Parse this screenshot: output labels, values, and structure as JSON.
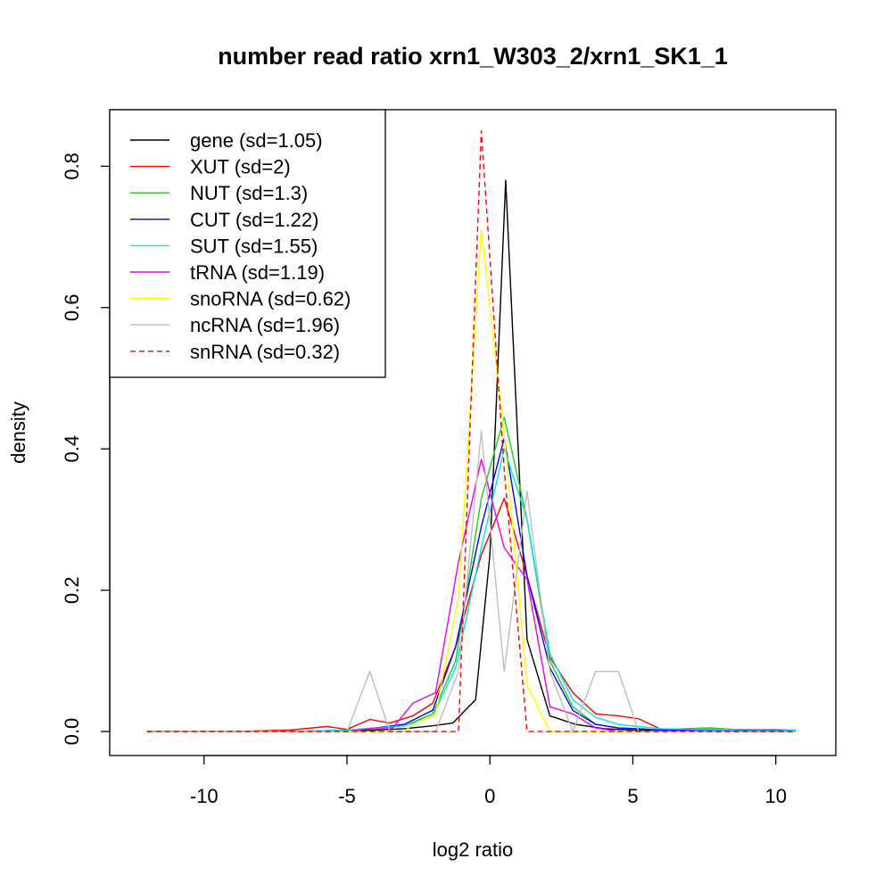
{
  "chart_data": {
    "type": "line",
    "title": "number read ratio xrn1_W303_2/xrn1_SK1_1",
    "xlabel": "log2 ratio",
    "ylabel": "density",
    "xlim": [
      -13.3,
      12.1
    ],
    "ylim": [
      -0.034,
      0.88
    ],
    "xticks": [
      -10,
      -5,
      0,
      5,
      10
    ],
    "yticks": [
      0.0,
      0.2,
      0.4,
      0.6,
      0.8
    ],
    "xtick_labels": [
      "-10",
      "-5",
      "0",
      "5",
      "10"
    ],
    "ytick_labels": [
      "0.0",
      "0.2",
      "0.4",
      "0.6",
      "0.8"
    ],
    "grid": false,
    "legend_position": "top-left",
    "series": [
      {
        "name": "gene (sd=1.05)",
        "color": "#000000",
        "dash": "solid",
        "x": [
          -12,
          -9,
          -6,
          -5,
          -4,
          -3,
          -2,
          -1.3,
          -0.5,
          0,
          0.55,
          1.3,
          2.1,
          3,
          4,
          5,
          6,
          8,
          10,
          10.7
        ],
        "y": [
          0,
          0,
          0,
          0.001,
          0.002,
          0.004,
          0.008,
          0.012,
          0.045,
          0.25,
          0.78,
          0.13,
          0.022,
          0.01,
          0.004,
          0.002,
          0.001,
          0,
          0,
          0
        ]
      },
      {
        "name": "XUT (sd=2)",
        "color": "#ff0000",
        "dash": "solid",
        "x": [
          -12,
          -9,
          -7,
          -5.7,
          -5,
          -4.2,
          -3.5,
          -2.7,
          -2,
          -1.2,
          -0.3,
          0.5,
          1.3,
          2.1,
          2.9,
          3.7,
          4.5,
          5.2,
          6,
          7.7,
          9.3,
          10.7
        ],
        "y": [
          0,
          0,
          0.002,
          0.007,
          0.003,
          0.017,
          0.012,
          0.022,
          0.04,
          0.12,
          0.25,
          0.33,
          0.22,
          0.105,
          0.055,
          0.025,
          0.022,
          0.018,
          0.003,
          0.005,
          0.001,
          0.002
        ]
      },
      {
        "name": "NUT (sd=1.3)",
        "color": "#22cc22",
        "dash": "solid",
        "x": [
          -12,
          -9,
          -7,
          -5,
          -4,
          -3,
          -2,
          -1.2,
          -0.3,
          0.5,
          1.3,
          2.1,
          2.9,
          3.7,
          4.5,
          6,
          7.7,
          9.3,
          10.7
        ],
        "y": [
          0,
          0,
          0,
          0.002,
          0.004,
          0.008,
          0.025,
          0.1,
          0.33,
          0.445,
          0.3,
          0.1,
          0.035,
          0.01,
          0.005,
          0.002,
          0.005,
          0.001,
          0.001
        ]
      },
      {
        "name": "CUT (sd=1.22)",
        "color": "#0000ff",
        "dash": "solid",
        "x": [
          -12,
          -9,
          -7,
          -5,
          -4,
          -3,
          -2,
          -1.2,
          -0.3,
          0.5,
          1.3,
          2.1,
          2.9,
          3.7,
          4.5,
          5.2,
          6,
          8,
          10.7
        ],
        "y": [
          0,
          0,
          0,
          0.002,
          0.005,
          0.01,
          0.03,
          0.12,
          0.29,
          0.415,
          0.22,
          0.09,
          0.03,
          0.01,
          0.005,
          0.004,
          0.002,
          0.001,
          0.001
        ]
      },
      {
        "name": "SUT (sd=1.55)",
        "color": "#00e5ee",
        "dash": "solid",
        "x": [
          -12,
          -9,
          -7,
          -5,
          -4,
          -3,
          -2,
          -1.2,
          -0.3,
          0.5,
          1.3,
          2.1,
          2.9,
          3.7,
          4.5,
          5.2,
          6,
          8,
          10,
          10.7
        ],
        "y": [
          0,
          0,
          0,
          0.002,
          0.005,
          0.008,
          0.022,
          0.09,
          0.26,
          0.4,
          0.3,
          0.11,
          0.045,
          0.02,
          0.01,
          0.007,
          0.004,
          0.003,
          0.003,
          0.002
        ]
      },
      {
        "name": "tRNA (sd=1.19)",
        "color": "#ee00ee",
        "dash": "solid",
        "x": [
          -12,
          -9,
          -7,
          -5,
          -4,
          -3.4,
          -2.7,
          -1.9,
          -1.1,
          -0.3,
          0.5,
          1.3,
          2.1,
          2.9,
          3.7,
          4.5,
          6,
          10.7
        ],
        "y": [
          0,
          0,
          0,
          0,
          0.005,
          0.005,
          0.04,
          0.055,
          0.24,
          0.385,
          0.26,
          0.215,
          0.035,
          0.025,
          0.005,
          0,
          0,
          0
        ]
      },
      {
        "name": "snoRNA (sd=0.62)",
        "color": "#ffff00",
        "dash": "solid",
        "x": [
          -12,
          -3,
          -2.7,
          -1.9,
          -1.1,
          -0.3,
          0.5,
          1.3,
          2.1,
          10.7
        ],
        "y": [
          0,
          0,
          0.01,
          0.025,
          0.19,
          0.71,
          0.42,
          0.065,
          0,
          0
        ]
      },
      {
        "name": "ncRNA (sd=1.96)",
        "color": "#bebebe",
        "dash": "solid",
        "x": [
          -12,
          -5,
          -4.2,
          -3.5,
          -2.7,
          -1.9,
          -1.1,
          -0.3,
          0.5,
          1.3,
          2.1,
          2.9,
          3.7,
          4.5,
          5.2,
          10.7
        ],
        "y": [
          0,
          0,
          0.085,
          0,
          0,
          0,
          0.085,
          0.425,
          0.085,
          0.34,
          0.085,
          0,
          0.085,
          0.085,
          0,
          0
        ]
      },
      {
        "name": "snRNA (sd=0.32)",
        "color": "#ff0000",
        "dash": "dashed",
        "x": [
          -12,
          -1.1,
          -0.3,
          0.5,
          1.3,
          10.7
        ],
        "y": [
          0,
          0,
          0.85,
          0.37,
          0,
          0
        ]
      }
    ]
  }
}
